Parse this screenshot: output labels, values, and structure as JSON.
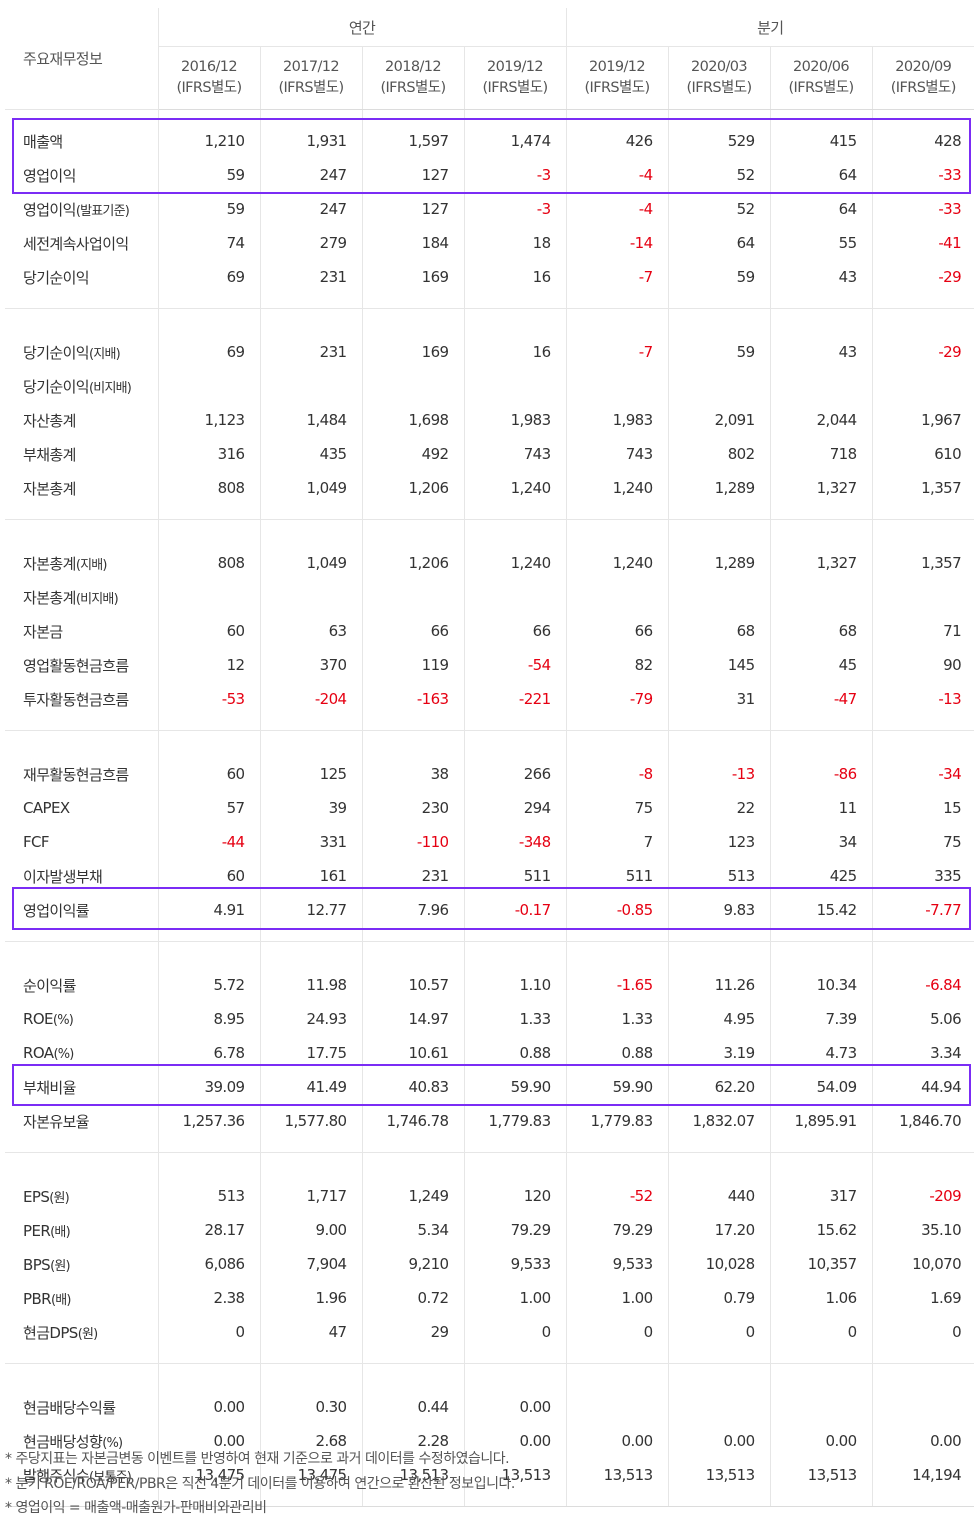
{
  "header": {
    "corner": "주요재무정보",
    "group_annual": "연간",
    "group_quarter": "분기",
    "periods": [
      {
        "date": "2016/12",
        "basis": "(IFRS별도)"
      },
      {
        "date": "2017/12",
        "basis": "(IFRS별도)"
      },
      {
        "date": "2018/12",
        "basis": "(IFRS별도)"
      },
      {
        "date": "2019/12",
        "basis": "(IFRS별도)"
      },
      {
        "date": "2019/12",
        "basis": "(IFRS별도)"
      },
      {
        "date": "2020/03",
        "basis": "(IFRS별도)"
      },
      {
        "date": "2020/06",
        "basis": "(IFRS별도)"
      },
      {
        "date": "2020/09",
        "basis": "(IFRS별도)"
      }
    ]
  },
  "groups": [
    [
      {
        "label": "매출액",
        "sub": "",
        "values": [
          "1,210",
          "1,931",
          "1,597",
          "1,474",
          "426",
          "529",
          "415",
          "428"
        ]
      },
      {
        "label": "영업이익",
        "sub": "",
        "values": [
          "59",
          "247",
          "127",
          "-3",
          "-4",
          "52",
          "64",
          "-33"
        ]
      },
      {
        "label": "영업이익",
        "sub": "(발표기준)",
        "values": [
          "59",
          "247",
          "127",
          "-3",
          "-4",
          "52",
          "64",
          "-33"
        ]
      },
      {
        "label": "세전계속사업이익",
        "sub": "",
        "values": [
          "74",
          "279",
          "184",
          "18",
          "-14",
          "64",
          "55",
          "-41"
        ]
      },
      {
        "label": "당기순이익",
        "sub": "",
        "values": [
          "69",
          "231",
          "169",
          "16",
          "-7",
          "59",
          "43",
          "-29"
        ]
      }
    ],
    [
      {
        "label": "당기순이익",
        "sub": "(지배)",
        "values": [
          "69",
          "231",
          "169",
          "16",
          "-7",
          "59",
          "43",
          "-29"
        ]
      },
      {
        "label": "당기순이익",
        "sub": "(비지배)",
        "values": [
          "",
          "",
          "",
          "",
          "",
          "",
          "",
          ""
        ]
      },
      {
        "label": "자산총계",
        "sub": "",
        "values": [
          "1,123",
          "1,484",
          "1,698",
          "1,983",
          "1,983",
          "2,091",
          "2,044",
          "1,967"
        ]
      },
      {
        "label": "부채총계",
        "sub": "",
        "values": [
          "316",
          "435",
          "492",
          "743",
          "743",
          "802",
          "718",
          "610"
        ]
      },
      {
        "label": "자본총계",
        "sub": "",
        "values": [
          "808",
          "1,049",
          "1,206",
          "1,240",
          "1,240",
          "1,289",
          "1,327",
          "1,357"
        ]
      }
    ],
    [
      {
        "label": "자본총계",
        "sub": "(지배)",
        "values": [
          "808",
          "1,049",
          "1,206",
          "1,240",
          "1,240",
          "1,289",
          "1,327",
          "1,357"
        ]
      },
      {
        "label": "자본총계",
        "sub": "(비지배)",
        "values": [
          "",
          "",
          "",
          "",
          "",
          "",
          "",
          ""
        ]
      },
      {
        "label": "자본금",
        "sub": "",
        "values": [
          "60",
          "63",
          "66",
          "66",
          "66",
          "68",
          "68",
          "71"
        ]
      },
      {
        "label": "영업활동현금흐름",
        "sub": "",
        "values": [
          "12",
          "370",
          "119",
          "-54",
          "82",
          "145",
          "45",
          "90"
        ]
      },
      {
        "label": "투자활동현금흐름",
        "sub": "",
        "values": [
          "-53",
          "-204",
          "-163",
          "-221",
          "-79",
          "31",
          "-47",
          "-13"
        ]
      }
    ],
    [
      {
        "label": "재무활동현금흐름",
        "sub": "",
        "values": [
          "60",
          "125",
          "38",
          "266",
          "-8",
          "-13",
          "-86",
          "-34"
        ]
      },
      {
        "label": "CAPEX",
        "sub": "",
        "values": [
          "57",
          "39",
          "230",
          "294",
          "75",
          "22",
          "11",
          "15"
        ]
      },
      {
        "label": "FCF",
        "sub": "",
        "values": [
          "-44",
          "331",
          "-110",
          "-348",
          "7",
          "123",
          "34",
          "75"
        ]
      },
      {
        "label": "이자발생부채",
        "sub": "",
        "values": [
          "60",
          "161",
          "231",
          "511",
          "511",
          "513",
          "425",
          "335"
        ]
      },
      {
        "label": "영업이익률",
        "sub": "",
        "values": [
          "4.91",
          "12.77",
          "7.96",
          "-0.17",
          "-0.85",
          "9.83",
          "15.42",
          "-7.77"
        ]
      }
    ],
    [
      {
        "label": "순이익률",
        "sub": "",
        "values": [
          "5.72",
          "11.98",
          "10.57",
          "1.10",
          "-1.65",
          "11.26",
          "10.34",
          "-6.84"
        ]
      },
      {
        "label": "ROE",
        "sub": "(%)",
        "values": [
          "8.95",
          "24.93",
          "14.97",
          "1.33",
          "1.33",
          "4.95",
          "7.39",
          "5.06"
        ]
      },
      {
        "label": "ROA",
        "sub": "(%)",
        "values": [
          "6.78",
          "17.75",
          "10.61",
          "0.88",
          "0.88",
          "3.19",
          "4.73",
          "3.34"
        ]
      },
      {
        "label": "부채비율",
        "sub": "",
        "values": [
          "39.09",
          "41.49",
          "40.83",
          "59.90",
          "59.90",
          "62.20",
          "54.09",
          "44.94"
        ]
      },
      {
        "label": "자본유보율",
        "sub": "",
        "values": [
          "1,257.36",
          "1,577.80",
          "1,746.78",
          "1,779.83",
          "1,779.83",
          "1,832.07",
          "1,895.91",
          "1,846.70"
        ]
      }
    ],
    [
      {
        "label": "EPS",
        "sub": "(원)",
        "values": [
          "513",
          "1,717",
          "1,249",
          "120",
          "-52",
          "440",
          "317",
          "-209"
        ]
      },
      {
        "label": "PER",
        "sub": "(배)",
        "values": [
          "28.17",
          "9.00",
          "5.34",
          "79.29",
          "79.29",
          "17.20",
          "15.62",
          "35.10"
        ]
      },
      {
        "label": "BPS",
        "sub": "(원)",
        "values": [
          "6,086",
          "7,904",
          "9,210",
          "9,533",
          "9,533",
          "10,028",
          "10,357",
          "10,070"
        ]
      },
      {
        "label": "PBR",
        "sub": "(배)",
        "values": [
          "2.38",
          "1.96",
          "0.72",
          "1.00",
          "1.00",
          "0.79",
          "1.06",
          "1.69"
        ]
      },
      {
        "label": "현금DPS",
        "sub": "(원)",
        "values": [
          "0",
          "47",
          "29",
          "0",
          "0",
          "0",
          "0",
          "0"
        ]
      }
    ],
    [
      {
        "label": "현금배당수익률",
        "sub": "",
        "values": [
          "0.00",
          "0.30",
          "0.44",
          "0.00",
          "",
          "",
          "",
          ""
        ]
      },
      {
        "label": "현금배당성향",
        "sub": "(%)",
        "values": [
          "0.00",
          "2.68",
          "2.28",
          "0.00",
          "0.00",
          "0.00",
          "0.00",
          "0.00"
        ]
      },
      {
        "label": "발행주식수",
        "sub": "(보통주)",
        "values": [
          "13,475",
          "13,475",
          "13,513",
          "13,513",
          "13,513",
          "13,513",
          "13,513",
          "14,194"
        ]
      }
    ]
  ],
  "notes": [
    "* 주당지표는 자본금변동 이벤트를 반영하여 현재 기준으로 과거 데이터를 수정하였습니다.",
    "* 분기 ROE/ROA/PER/PBR은 직전 4분기 데이터를 이용하여 연간으로 환산된 정보입니다.",
    "* 영업이익 = 매출액-매출원가-판매비와관리비"
  ],
  "highlight_color": "#7b2cf5",
  "negative_color": "#e60012"
}
